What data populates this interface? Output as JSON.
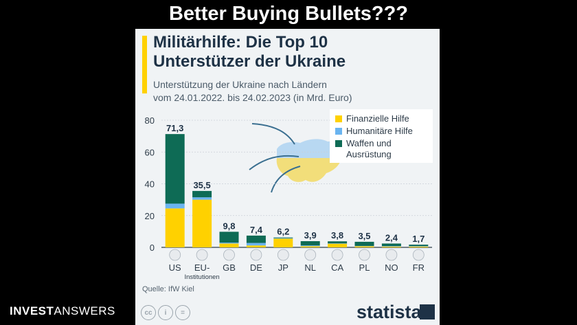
{
  "banner": "Better Buying Bullets???",
  "brand": {
    "bold": "INVEST",
    "light": "ANSWERS"
  },
  "card": {
    "title_line1": "Militärhilfe: Die Top 10",
    "title_line2": "Unterstützer der Ukraine",
    "subtitle_line1": "Unterstützung der Ukraine nach Ländern",
    "subtitle_line2": "vom 24.01.2022. bis 24.02.2023 (in Mrd. Euro)",
    "source": "Quelle: IfW Kiel",
    "logo_text": "statista"
  },
  "colors": {
    "financial": "#ffd100",
    "humanitarian": "#6ab4f0",
    "military": "#0e6b55",
    "navy": "#1e3246"
  },
  "chart_data": {
    "type": "bar",
    "stacked": true,
    "categories": [
      "US",
      "EU-Institutionen",
      "GB",
      "DE",
      "JP",
      "NL",
      "CA",
      "PL",
      "NO",
      "FR"
    ],
    "category_labels": [
      [
        "US"
      ],
      [
        "EU-",
        "Institutionen"
      ],
      [
        "GB"
      ],
      [
        "DE"
      ],
      [
        "JP"
      ],
      [
        "NL"
      ],
      [
        "CA"
      ],
      [
        "PL"
      ],
      [
        "NO"
      ],
      [
        "FR"
      ]
    ],
    "flags": [
      "flag-us-icon",
      "flag-eu-icon",
      "flag-gb-icon",
      "flag-de-icon",
      "flag-jp-icon",
      "flag-nl-icon",
      "flag-ca-icon",
      "flag-pl-icon",
      "flag-no-icon",
      "flag-fr-icon"
    ],
    "totals": [
      "71,3",
      "35,5",
      "9,8",
      "7,4",
      "6,2",
      "3,9",
      "3,8",
      "3,5",
      "2,4",
      "1,7"
    ],
    "series": [
      {
        "name": "Finanzielle Hilfe",
        "values": [
          24.5,
          30.0,
          2.4,
          1.2,
          5.5,
          0.7,
          2.3,
          0.7,
          0.5,
          0.5
        ]
      },
      {
        "name": "Humanitäre Hilfe",
        "values": [
          3.0,
          1.5,
          0.6,
          1.6,
          0.3,
          0.5,
          0.2,
          0.2,
          0.3,
          0.3
        ]
      },
      {
        "name": "Waffen und Ausrüstung",
        "values": [
          43.8,
          4.0,
          6.8,
          4.6,
          0.4,
          2.7,
          1.3,
          2.6,
          1.6,
          0.9
        ]
      }
    ],
    "legend_lines": [
      [
        "Finanzielle Hilfe"
      ],
      [
        "Humanitäre Hilfe"
      ],
      [
        "Waffen und",
        "Ausrüstung"
      ]
    ],
    "yticks": [
      0,
      20,
      40,
      60,
      80
    ],
    "ylim": [
      0,
      80
    ],
    "legend_position": "top-right",
    "grid": true
  }
}
